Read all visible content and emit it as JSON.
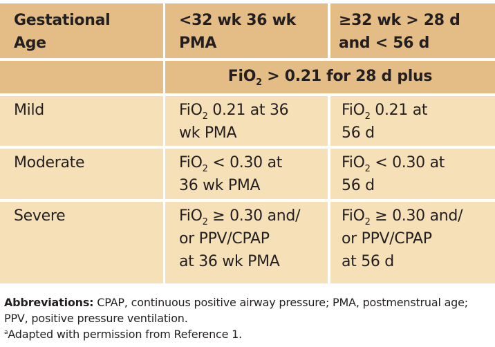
{
  "header": {
    "col1": "Gestational\nAge",
    "col2": "<32 wk 36 wk\nPMA",
    "col3": "≥32 wk > 28 d\nand < 56 d"
  },
  "span_row": {
    "pre": "FiO",
    "sub": "2",
    "post": " > 0.21 for 28 d plus"
  },
  "rows": [
    {
      "label": "Mild",
      "c2": {
        "pre": "FiO",
        "sub": "2",
        "post": " 0.21 at 36\n wk PMA"
      },
      "c3": {
        "pre": "FiO",
        "sub": "2",
        "post": " 0.21 at\n56 d"
      }
    },
    {
      "label": "Moderate",
      "c2": {
        "pre": "FiO",
        "sub": "2",
        "post": " < 0.30 at\n 36 wk PMA"
      },
      "c3": {
        "pre": "FiO",
        "sub": "2",
        "post": " < 0.30 at\n56 d"
      }
    },
    {
      "label": "Severe",
      "c2": {
        "pre": "FiO",
        "sub": "2",
        "post": " ≥ 0.30 and/\nor PPV/CPAP\nat 36 wk PMA"
      },
      "c3": {
        "pre": "FiO",
        "sub": "2",
        "post": " ≥ 0.30 and/\nor PPV/CPAP\nat 56 d"
      }
    }
  ],
  "footnote": {
    "abbrev_label": "Abbreviations:",
    "abbrev_text": " CPAP, continuous positive airway pressure; PMA, postmenstrual age; PPV, positive pressure ventilation.",
    "marker": "a",
    "adapted": "Adapted with permission from Reference 1."
  },
  "colors": {
    "header_bg": "#e3bc86",
    "body_bg": "#f6e0b8"
  }
}
